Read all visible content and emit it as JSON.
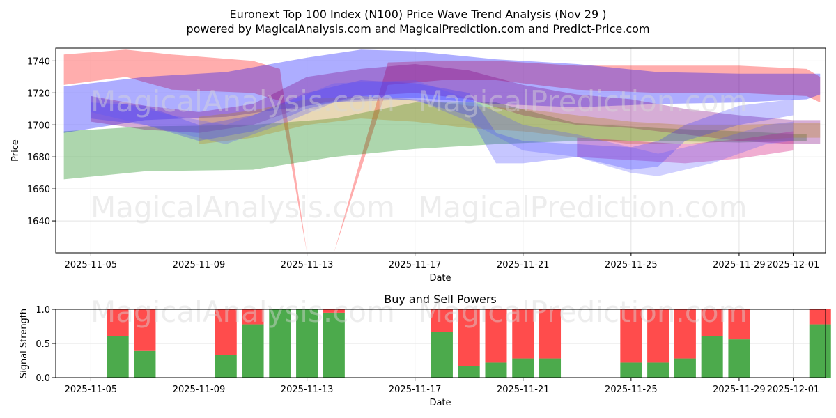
{
  "chart_data": [
    {
      "type": "area",
      "title": "Euronext Top 100 Index (N100) Price Wave Trend Analysis (Nov 29 )",
      "subtitle": "powered by MagicalAnalysis.com and MagicalPrediction.com and Predict-Price.com",
      "xlabel": "Date",
      "ylabel": "Price",
      "ylim": [
        1620,
        1748
      ],
      "xlim_days": [
        -1.3,
        27.2
      ],
      "x_origin": "2025-11-05",
      "x_ticks": [
        "2025-11-05",
        "2025-11-09",
        "2025-11-13",
        "2025-11-17",
        "2025-11-21",
        "2025-11-25",
        "2025-11-29",
        "2025-12-01"
      ],
      "x_tick_days": [
        0,
        4,
        8,
        12,
        16,
        20,
        24,
        26
      ],
      "y_ticks": [
        1640,
        1660,
        1680,
        1700,
        1720,
        1740
      ],
      "watermarks": [
        "MagicalAnalysis.com",
        "MagicalPrediction.com"
      ],
      "series": [
        {
          "name": "red-band",
          "color": "#ff0000",
          "x": [
            -1,
            1.3,
            3,
            6,
            7,
            8,
            9,
            11,
            13,
            15,
            18,
            21,
            24,
            26.5,
            27
          ],
          "upper": [
            1744,
            1747,
            1744,
            1740,
            1735,
            1620,
            1620,
            1739,
            1740,
            1740,
            1737,
            1737,
            1737,
            1735,
            1730
          ],
          "lower": [
            1725,
            1730,
            1722,
            1720,
            1715,
            1620,
            1620,
            1725,
            1728,
            1728,
            1722,
            1720,
            1720,
            1718,
            1714
          ]
        },
        {
          "name": "green-band",
          "color": "#008000",
          "x": [
            -1,
            2,
            6,
            9,
            12,
            15,
            18,
            21,
            24,
            26.5
          ],
          "upper": [
            1696,
            1699,
            1700,
            1704,
            1714,
            1714,
            1701,
            1698,
            1696,
            1694
          ],
          "lower": [
            1666,
            1671,
            1672,
            1680,
            1685,
            1688,
            1690,
            1690,
            1689,
            1690
          ]
        },
        {
          "name": "blue-band",
          "color": "#0000ff",
          "x": [
            -1,
            2,
            5,
            8,
            10,
            12,
            15,
            18,
            21,
            24,
            26.5,
            27
          ],
          "upper": [
            1724,
            1730,
            1733,
            1742,
            1747,
            1746,
            1741,
            1738,
            1733,
            1732,
            1732,
            1732
          ],
          "lower": [
            1695,
            1703,
            1705,
            1712,
            1716,
            1717,
            1713,
            1711,
            1713,
            1714,
            1716,
            1719
          ]
        },
        {
          "name": "purple-band",
          "color": "#800080",
          "x": [
            0,
            2,
            4,
            6,
            8,
            10,
            12,
            14,
            16,
            18,
            20,
            22,
            24,
            26,
            27
          ],
          "upper": [
            1718,
            1712,
            1708,
            1713,
            1730,
            1735,
            1738,
            1734,
            1725,
            1719,
            1716,
            1710,
            1706,
            1703,
            1703
          ],
          "lower": [
            1702,
            1697,
            1695,
            1700,
            1712,
            1718,
            1720,
            1716,
            1706,
            1700,
            1698,
            1694,
            1690,
            1688,
            1688
          ]
        },
        {
          "name": "orange-band",
          "color": "#b8861b",
          "x": [
            4,
            6,
            8,
            10,
            12,
            14,
            16,
            18,
            20,
            22,
            24,
            26,
            27
          ],
          "upper": [
            1705,
            1709,
            1716,
            1718,
            1716,
            1712,
            1710,
            1706,
            1702,
            1700,
            1700,
            1701,
            1701
          ],
          "lower": [
            1688,
            1692,
            1700,
            1704,
            1702,
            1698,
            1696,
            1692,
            1688,
            1688,
            1690,
            1692,
            1692
          ]
        },
        {
          "name": "pink-band",
          "color": "#d00070",
          "x": [
            18,
            20,
            22,
            24,
            26
          ],
          "upper": [
            1692,
            1690,
            1688,
            1691,
            1696
          ],
          "lower": [
            1680,
            1678,
            1676,
            1679,
            1684
          ]
        },
        {
          "name": "wave-blue-1",
          "color": "#3333ff",
          "x": [
            0,
            2,
            4,
            6,
            8,
            10,
            12,
            14,
            15,
            16,
            18,
            20,
            21,
            22,
            24,
            26
          ],
          "upper": [
            1714,
            1712,
            1700,
            1706,
            1720,
            1728,
            1726,
            1720,
            1695,
            1690,
            1688,
            1686,
            1690,
            1700,
            1712,
            1716
          ],
          "lower": [
            1704,
            1700,
            1690,
            1696,
            1710,
            1718,
            1715,
            1706,
            1676,
            1676,
            1680,
            1672,
            1674,
            1690,
            1700,
            1706
          ]
        },
        {
          "name": "wave-blue-2",
          "color": "#5555ff",
          "x": [
            0,
            3,
            5,
            7,
            9,
            12,
            14,
            16,
            18,
            20,
            21,
            23,
            25,
            26
          ],
          "upper": [
            1718,
            1706,
            1700,
            1712,
            1726,
            1728,
            1716,
            1700,
            1694,
            1686,
            1682,
            1690,
            1700,
            1702
          ],
          "lower": [
            1708,
            1696,
            1688,
            1700,
            1714,
            1716,
            1702,
            1684,
            1680,
            1670,
            1668,
            1676,
            1688,
            1690
          ]
        }
      ]
    },
    {
      "type": "bar",
      "title": "Buy and Sell Powers",
      "xlabel": "Date",
      "ylabel": "Signal Strength",
      "ylim": [
        0,
        1
      ],
      "xlim_days": [
        -1.3,
        27.2
      ],
      "x_ticks": [
        "2025-11-05",
        "2025-11-09",
        "2025-11-13",
        "2025-11-17",
        "2025-11-21",
        "2025-11-25",
        "2025-11-29",
        "2025-12-01"
      ],
      "x_tick_days": [
        0,
        4,
        8,
        12,
        16,
        20,
        24,
        26
      ],
      "y_ticks": [
        "0.0",
        "0.5",
        "1.0"
      ],
      "y_tick_values": [
        0,
        0.5,
        1.0
      ],
      "colors": {
        "buy": "#4caa4c",
        "sell": "#ff4c4c"
      },
      "bar_days": [
        1,
        2,
        5,
        6,
        7,
        8,
        9,
        13,
        14,
        15,
        16,
        17,
        20,
        21,
        22,
        23,
        24,
        27
      ],
      "buy": [
        0.61,
        0.39,
        0.33,
        0.78,
        1.0,
        1.0,
        0.95,
        0.67,
        0.17,
        0.22,
        0.28,
        0.28,
        0.22,
        0.22,
        0.28,
        0.61,
        0.56,
        0.78
      ]
    }
  ]
}
